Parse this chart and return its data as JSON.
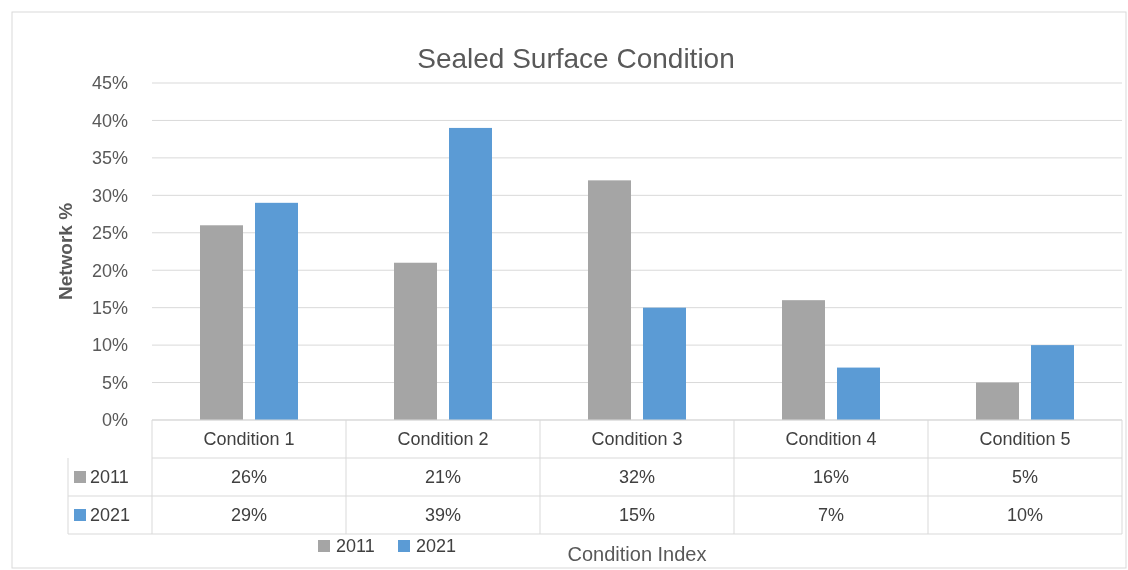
{
  "chart_data": {
    "type": "bar",
    "title": "Sealed Surface Condition",
    "xlabel": "Condition Index",
    "ylabel": "Network %",
    "categories": [
      "Condition 1",
      "Condition 2",
      "Condition 3",
      "Condition 4",
      "Condition 5"
    ],
    "series": [
      {
        "name": "2011",
        "color": "#a5a5a5",
        "values": [
          26,
          21,
          32,
          16,
          5
        ],
        "value_labels": [
          "26%",
          "21%",
          "32%",
          "16%",
          "5%"
        ]
      },
      {
        "name": "2021",
        "color": "#5b9bd5",
        "values": [
          29,
          39,
          15,
          7,
          10
        ],
        "value_labels": [
          "29%",
          "39%",
          "15%",
          "7%",
          "10%"
        ]
      }
    ],
    "ylim": [
      0,
      45
    ],
    "yticks": [
      {
        "value": 0,
        "label": "0%"
      },
      {
        "value": 5,
        "label": "5%"
      },
      {
        "value": 10,
        "label": "10%"
      },
      {
        "value": 15,
        "label": "15%"
      },
      {
        "value": 20,
        "label": "20%"
      },
      {
        "value": 25,
        "label": "25%"
      },
      {
        "value": 30,
        "label": "30%"
      },
      {
        "value": 35,
        "label": "35%"
      },
      {
        "value": 40,
        "label": "40%"
      },
      {
        "value": 45,
        "label": "45%"
      }
    ],
    "grid": "y",
    "legend": "bottom"
  }
}
